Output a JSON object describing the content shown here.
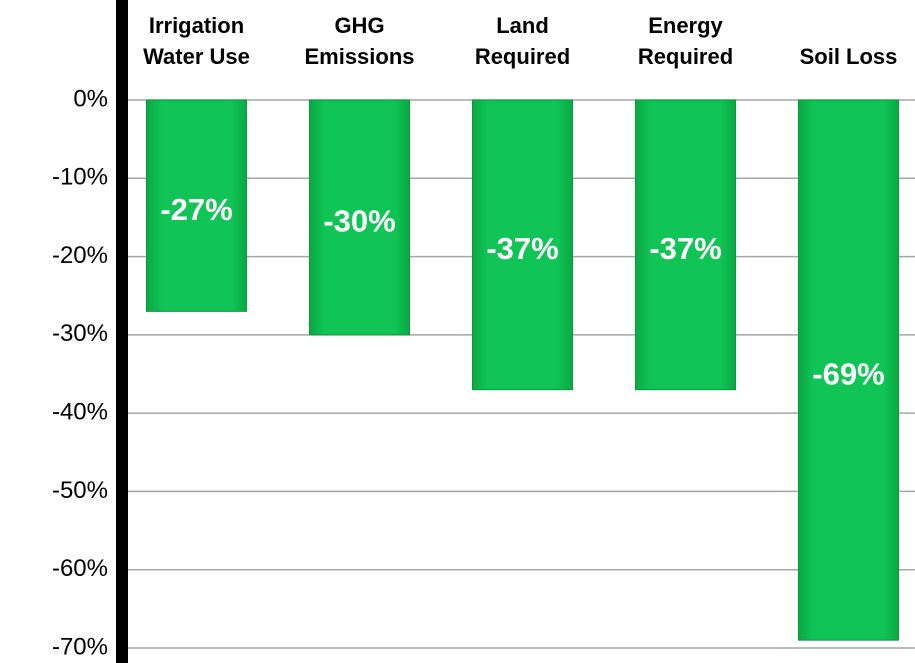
{
  "chart_data": {
    "type": "bar",
    "categories": [
      "Irrigation Water Use",
      "GHG Emissions",
      "Land Required",
      "Energy Required",
      "Soil Loss"
    ],
    "values": [
      -27,
      -30,
      -37,
      -37,
      -69
    ],
    "value_labels": [
      "-27%",
      "-30%",
      "-37%",
      "-37%",
      "-69%"
    ],
    "color": "#0fbf52",
    "ylim": [
      -70,
      0
    ],
    "yticks": [
      {
        "value": 0,
        "label": "0%"
      },
      {
        "value": -10,
        "label": "-10%"
      },
      {
        "value": -20,
        "label": "-20%"
      },
      {
        "value": -30,
        "label": "-30%"
      },
      {
        "value": -40,
        "label": "-40%"
      },
      {
        "value": -50,
        "label": "-50%"
      },
      {
        "value": -60,
        "label": "-60%"
      },
      {
        "value": -70,
        "label": "-70%"
      }
    ],
    "grid": true
  }
}
